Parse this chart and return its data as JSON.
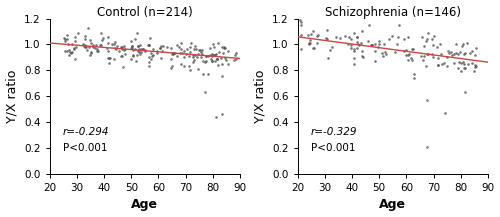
{
  "panel1_title": "Control (n=214)",
  "panel2_title": "Schizophrenia (n=146)",
  "xlabel": "Age",
  "ylabel": "Y/X ratio",
  "xlim": [
    20,
    90
  ],
  "ylim": [
    0,
    1.2
  ],
  "yticks": [
    0,
    0.2,
    0.4,
    0.6,
    0.8,
    1.0,
    1.2
  ],
  "xticks": [
    20,
    30,
    40,
    50,
    60,
    70,
    80,
    90
  ],
  "panel1_annotation_r": "r=-0.294",
  "panel1_annotation_p": "P<0.001",
  "panel2_annotation_r": "r=-0.329",
  "panel2_annotation_p": "P<0.001",
  "scatter_color": "#555555",
  "line_color": "#cc4444",
  "marker_size": 3.5,
  "marker_alpha": 0.8,
  "ctrl_intercept": 1.045,
  "ctrl_slope": -0.0017,
  "scz_intercept": 1.115,
  "scz_slope": -0.0028,
  "background_color": "#ffffff",
  "title_fontsize": 8.5,
  "label_fontsize": 9,
  "tick_fontsize": 7.5,
  "annot_fontsize": 7.5
}
